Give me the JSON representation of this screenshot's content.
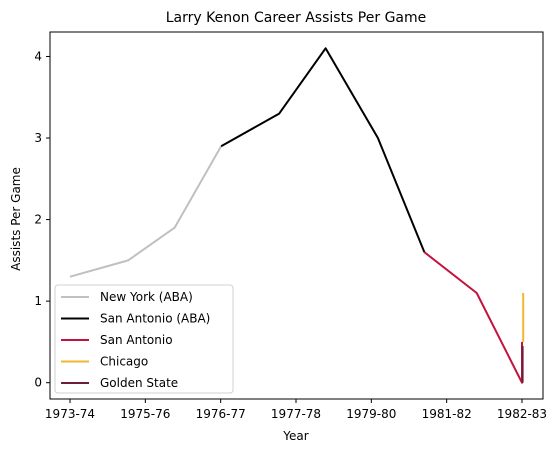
{
  "chart_data": {
    "type": "line",
    "title": "Larry Kenon Career Assists Per Game",
    "xlabel": "Year",
    "ylabel": "Assists Per Game",
    "x_ticks": [
      "1973-74",
      "1975-76",
      "1976-77",
      "1977-78",
      "1979-80",
      "1981-82",
      "1982-83"
    ],
    "y_ticks": [
      0,
      1,
      2,
      3,
      4
    ],
    "xlim": [
      0,
      9
    ],
    "ylim": [
      -0.2,
      4.3
    ],
    "grid": false,
    "legend_position": "lower-left",
    "series": [
      {
        "name": "New York (ABA)",
        "color": "#c0c0c0",
        "points": [
          [
            0,
            1.3
          ],
          [
            1,
            1.5
          ],
          [
            1.8,
            1.9
          ],
          [
            2.6,
            2.9
          ]
        ]
      },
      {
        "name": "San Antonio (ABA)",
        "color": "#000000",
        "points": [
          [
            2.6,
            2.9
          ],
          [
            3.6,
            3.3
          ],
          [
            4.4,
            4.1
          ],
          [
            5.3,
            3.0
          ],
          [
            6.1,
            1.6
          ]
        ]
      },
      {
        "name": "San Antonio",
        "color": "#c4123e",
        "points": [
          [
            6.1,
            1.6
          ],
          [
            7.0,
            1.1
          ],
          [
            7.78,
            0.0
          ],
          [
            7.78,
            0.5
          ]
        ]
      },
      {
        "name": "Chicago",
        "color": "#f0b730",
        "points": [
          [
            7.8,
            0.5
          ],
          [
            7.8,
            1.1
          ]
        ]
      },
      {
        "name": "Golden State",
        "color": "#6e1e3a",
        "points": [
          [
            7.79,
            0.0
          ],
          [
            7.79,
            0.45
          ]
        ]
      }
    ]
  }
}
